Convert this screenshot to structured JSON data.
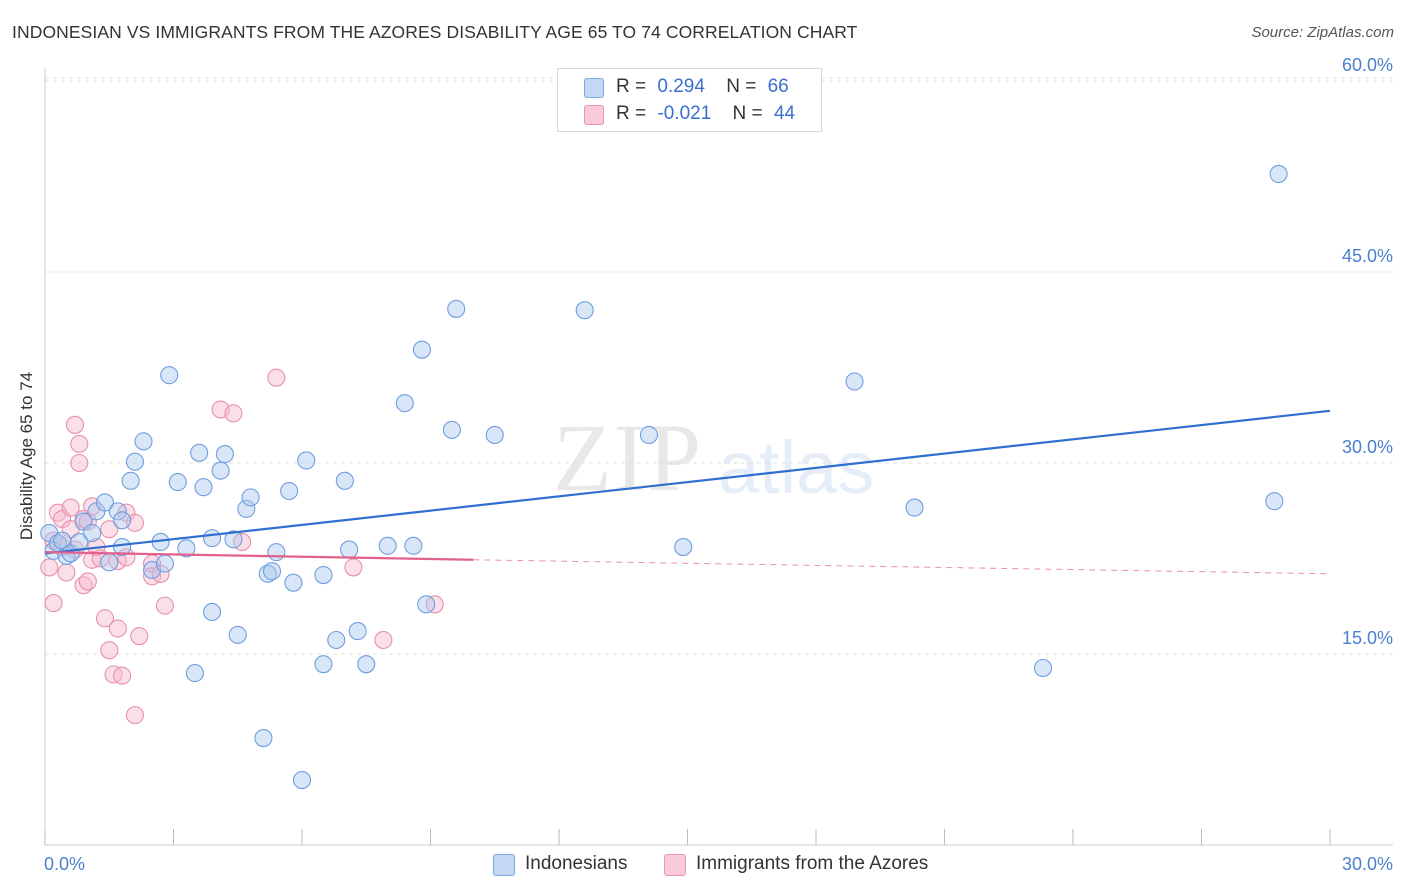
{
  "title": "INDONESIAN VS IMMIGRANTS FROM THE AZORES DISABILITY AGE 65 TO 74 CORRELATION CHART",
  "source": "Source: ZipAtlas.com",
  "watermark": {
    "zip": "ZIP",
    "atlas": "atlas"
  },
  "legend": {
    "r_label": "R =",
    "n_label": "N =",
    "series1": {
      "r": "0.294",
      "n": "66"
    },
    "series2": {
      "r": "-0.021",
      "n": "44"
    }
  },
  "bottom_legend": {
    "series1": "Indonesians",
    "series2": "Immigrants from the Azores"
  },
  "colors": {
    "blue_fill": "#aac8f0",
    "blue_stroke": "#6f9ee0",
    "blue_line": "#2f6fd0",
    "pink_fill": "#f6b8cb",
    "pink_stroke": "#e890ab",
    "pink_line": "#e0608e"
  },
  "chart_data": {
    "type": "scatter",
    "title": "INDONESIAN VS IMMIGRANTS FROM THE AZORES DISABILITY AGE 65 TO 74 CORRELATION CHART",
    "xlabel": "",
    "ylabel": "Disability Age 65 to 74",
    "xlim": [
      0,
      30
    ],
    "ylim": [
      0,
      62
    ],
    "x_tick_labels": [
      "0.0%",
      "30.0%"
    ],
    "y_ticks": [
      15,
      30,
      45,
      60
    ],
    "y_tick_labels": [
      "15.0%",
      "30.0%",
      "45.0%",
      "60.0%"
    ],
    "grid": true,
    "legend_position": "top-center",
    "series": [
      {
        "name": "Indonesians",
        "r": 0.294,
        "n": 66,
        "trend": {
          "x": [
            0,
            30
          ],
          "y": [
            22.9,
            34.1
          ],
          "style": "solid"
        },
        "points": [
          [
            0.1,
            24.5
          ],
          [
            0.2,
            23.1
          ],
          [
            0.3,
            23.7
          ],
          [
            0.4,
            23.9
          ],
          [
            0.5,
            22.7
          ],
          [
            0.6,
            22.9
          ],
          [
            0.8,
            23.8
          ],
          [
            0.9,
            25.4
          ],
          [
            1.1,
            24.5
          ],
          [
            1.2,
            26.2
          ],
          [
            1.4,
            26.9
          ],
          [
            1.5,
            22.2
          ],
          [
            1.7,
            26.2
          ],
          [
            1.8,
            25.5
          ],
          [
            1.8,
            23.4
          ],
          [
            2.0,
            28.6
          ],
          [
            2.1,
            30.1
          ],
          [
            2.3,
            31.7
          ],
          [
            2.5,
            21.6
          ],
          [
            2.7,
            23.8
          ],
          [
            2.8,
            22.1
          ],
          [
            2.9,
            36.9
          ],
          [
            3.1,
            28.5
          ],
          [
            3.3,
            23.3
          ],
          [
            3.5,
            13.5
          ],
          [
            3.6,
            30.8
          ],
          [
            3.7,
            28.1
          ],
          [
            3.9,
            24.1
          ],
          [
            3.9,
            18.3
          ],
          [
            4.1,
            29.4
          ],
          [
            4.2,
            30.7
          ],
          [
            4.4,
            24.0
          ],
          [
            4.5,
            16.5
          ],
          [
            4.7,
            26.4
          ],
          [
            4.8,
            27.3
          ],
          [
            5.1,
            8.4
          ],
          [
            5.2,
            21.3
          ],
          [
            5.3,
            21.5
          ],
          [
            5.4,
            23.0
          ],
          [
            5.7,
            27.8
          ],
          [
            5.8,
            20.6
          ],
          [
            6.0,
            5.1
          ],
          [
            6.1,
            30.2
          ],
          [
            6.5,
            14.2
          ],
          [
            6.5,
            21.2
          ],
          [
            6.8,
            16.1
          ],
          [
            7.0,
            28.6
          ],
          [
            7.1,
            23.2
          ],
          [
            7.3,
            16.8
          ],
          [
            7.5,
            14.2
          ],
          [
            8.0,
            23.5
          ],
          [
            8.4,
            34.7
          ],
          [
            8.6,
            23.5
          ],
          [
            8.8,
            38.9
          ],
          [
            8.9,
            18.9
          ],
          [
            9.5,
            32.6
          ],
          [
            9.6,
            42.1
          ],
          [
            10.5,
            32.2
          ],
          [
            12.6,
            42.0
          ],
          [
            14.1,
            32.2
          ],
          [
            14.9,
            23.4
          ],
          [
            18.9,
            36.4
          ],
          [
            20.3,
            26.5
          ],
          [
            23.3,
            13.9
          ],
          [
            28.7,
            27.0
          ],
          [
            28.8,
            52.7
          ]
        ]
      },
      {
        "name": "Immigrants from the Azores",
        "r": -0.021,
        "n": 44,
        "trend": {
          "x": [
            0,
            10
          ],
          "y": [
            23.0,
            22.4
          ],
          "style": "solid",
          "extension": {
            "x": [
              10,
              30
            ],
            "y": [
              22.4,
              21.3
            ],
            "style": "dashed"
          }
        },
        "points": [
          [
            0.1,
            21.8
          ],
          [
            0.2,
            23.9
          ],
          [
            0.2,
            19.0
          ],
          [
            0.3,
            26.1
          ],
          [
            0.4,
            25.6
          ],
          [
            0.4,
            23.4
          ],
          [
            0.5,
            21.4
          ],
          [
            0.6,
            26.5
          ],
          [
            0.6,
            24.8
          ],
          [
            0.7,
            33.0
          ],
          [
            0.7,
            23.2
          ],
          [
            0.8,
            30.0
          ],
          [
            0.8,
            31.5
          ],
          [
            0.9,
            25.6
          ],
          [
            0.9,
            20.4
          ],
          [
            1.0,
            20.7
          ],
          [
            1.0,
            25.4
          ],
          [
            1.1,
            26.6
          ],
          [
            1.1,
            22.4
          ],
          [
            1.2,
            23.4
          ],
          [
            1.3,
            22.5
          ],
          [
            1.4,
            17.8
          ],
          [
            1.5,
            15.3
          ],
          [
            1.5,
            24.8
          ],
          [
            1.6,
            13.4
          ],
          [
            1.7,
            22.3
          ],
          [
            1.7,
            17.0
          ],
          [
            1.8,
            13.3
          ],
          [
            1.9,
            26.1
          ],
          [
            1.9,
            22.6
          ],
          [
            2.1,
            10.2
          ],
          [
            2.1,
            25.3
          ],
          [
            2.2,
            16.4
          ],
          [
            2.5,
            22.1
          ],
          [
            2.5,
            21.1
          ],
          [
            2.8,
            18.8
          ],
          [
            4.1,
            34.2
          ],
          [
            4.4,
            33.9
          ],
          [
            4.6,
            23.8
          ],
          [
            5.4,
            36.7
          ],
          [
            7.2,
            21.8
          ],
          [
            7.9,
            16.1
          ],
          [
            9.1,
            18.9
          ],
          [
            2.7,
            21.3
          ]
        ]
      }
    ]
  }
}
